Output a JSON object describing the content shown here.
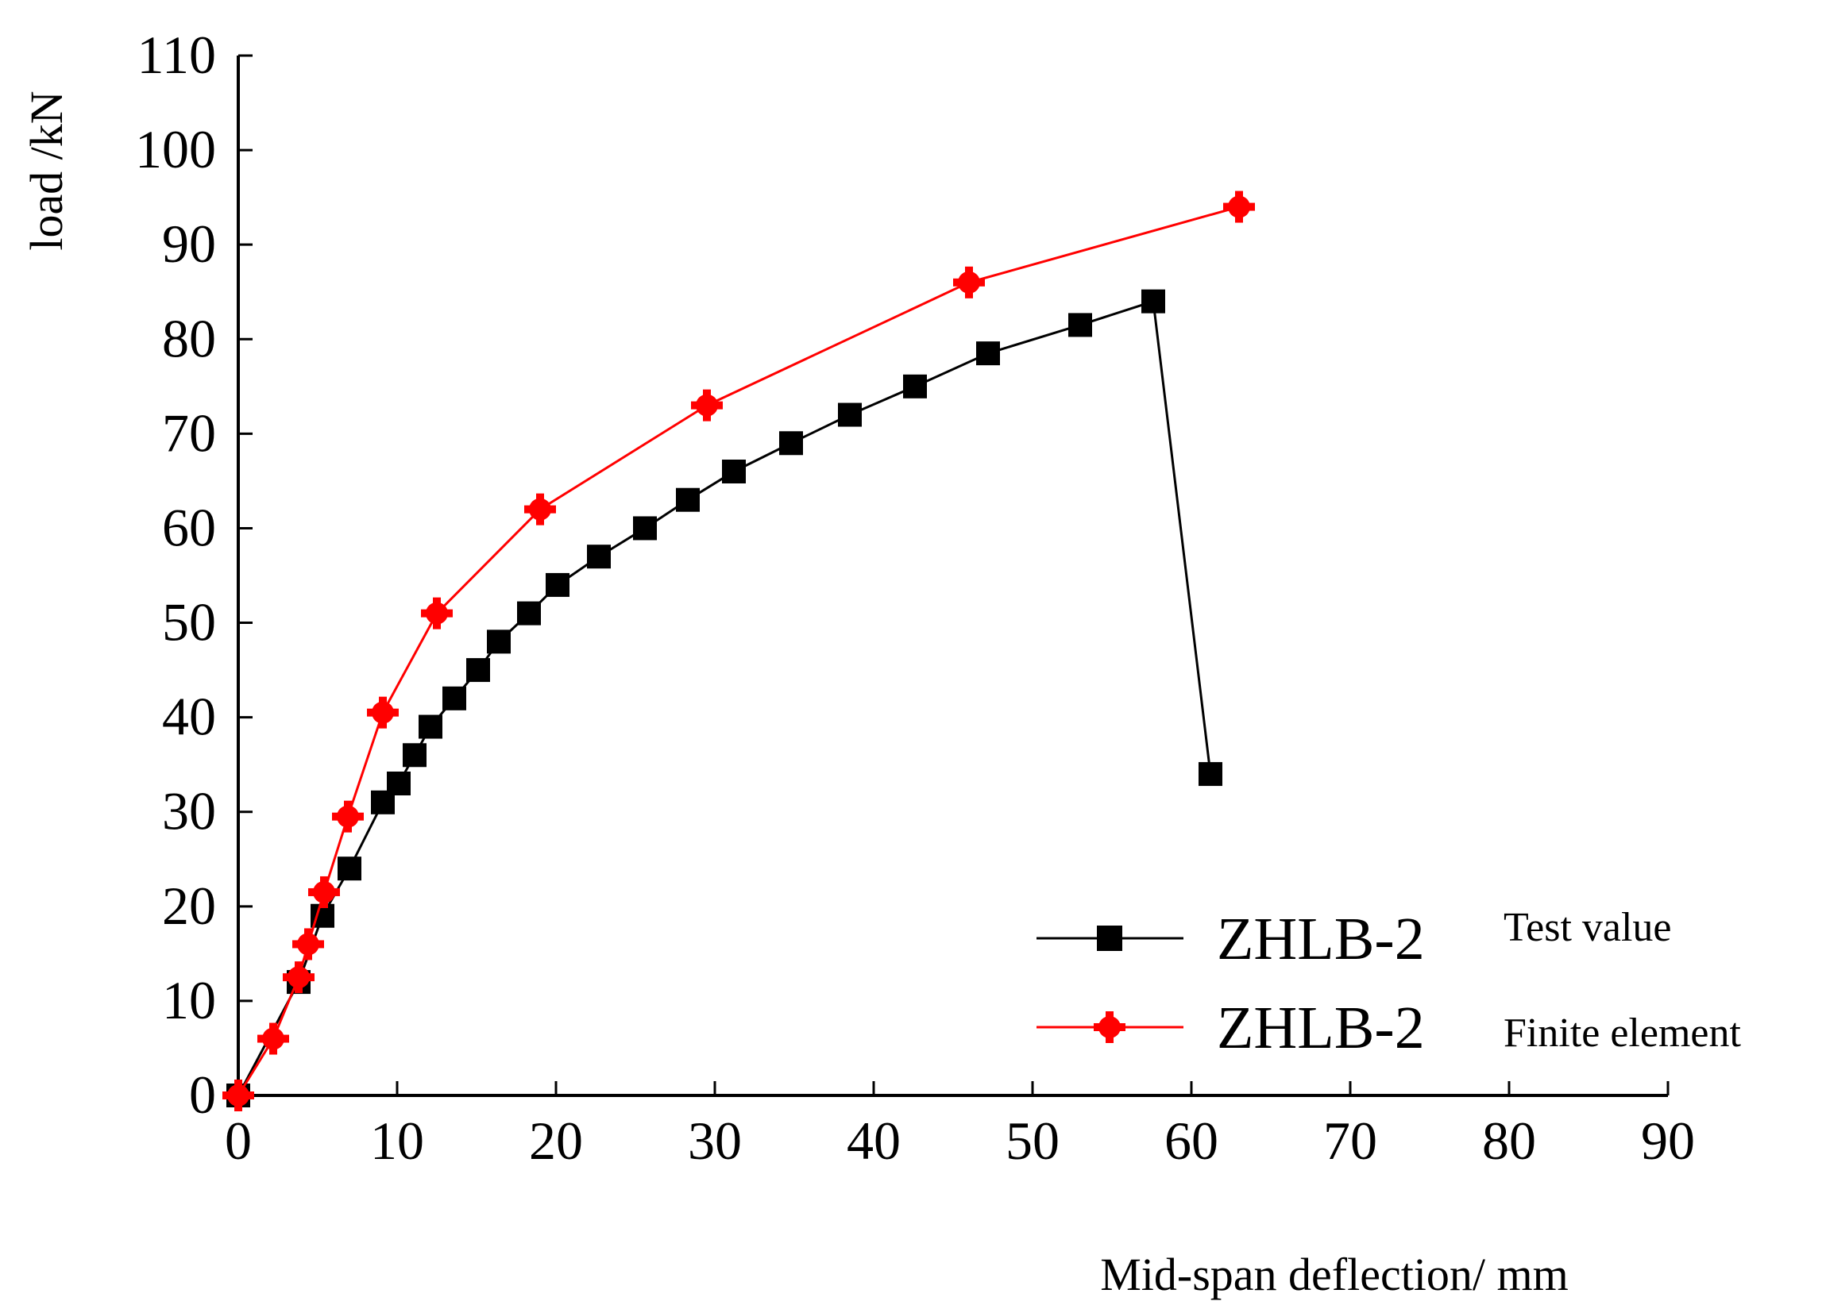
{
  "chart_data": {
    "type": "line",
    "title": "",
    "xlabel": "Mid-span deflection/ mm",
    "ylabel": "load /kN",
    "xlim": [
      0,
      90
    ],
    "ylim": [
      0,
      110
    ],
    "xticks": [
      0,
      10,
      20,
      30,
      40,
      50,
      60,
      70,
      80,
      90
    ],
    "yticks": [
      0,
      10,
      20,
      30,
      40,
      50,
      60,
      70,
      80,
      90,
      100,
      110
    ],
    "grid": false,
    "legend_position": "bottom-right",
    "series": [
      {
        "name": "ZHLB-2",
        "description": "Test value",
        "color": "#000000",
        "marker": "square",
        "points": [
          [
            0,
            0
          ],
          [
            3.8,
            12
          ],
          [
            5.3,
            19
          ],
          [
            7.0,
            24
          ],
          [
            9.1,
            31
          ],
          [
            10.1,
            33
          ],
          [
            11.1,
            36
          ],
          [
            12.1,
            39
          ],
          [
            13.6,
            42
          ],
          [
            15.1,
            45
          ],
          [
            16.4,
            48
          ],
          [
            18.3,
            51
          ],
          [
            20.1,
            54
          ],
          [
            22.7,
            57
          ],
          [
            25.6,
            60
          ],
          [
            28.3,
            63
          ],
          [
            31.2,
            66
          ],
          [
            34.8,
            69
          ],
          [
            38.5,
            72
          ],
          [
            42.6,
            75
          ],
          [
            47.2,
            78.5
          ],
          [
            53.0,
            81.5
          ],
          [
            57.6,
            84
          ],
          [
            61.2,
            34
          ]
        ]
      },
      {
        "name": "ZHLB-2",
        "description": "Finite element",
        "color": "#ff0000",
        "marker": "circle",
        "points": [
          [
            0,
            0
          ],
          [
            2.2,
            6
          ],
          [
            3.8,
            12.5
          ],
          [
            4.4,
            16
          ],
          [
            5.4,
            21.5
          ],
          [
            6.9,
            29.5
          ],
          [
            9.1,
            40.5
          ],
          [
            12.5,
            51
          ],
          [
            19.0,
            62
          ],
          [
            29.5,
            73
          ],
          [
            46.0,
            86
          ],
          [
            63.0,
            94
          ]
        ]
      }
    ]
  }
}
